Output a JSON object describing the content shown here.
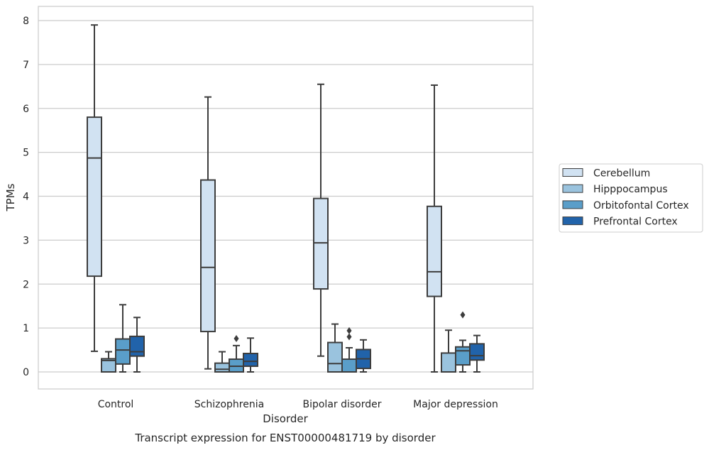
{
  "chart_data": {
    "type": "box",
    "xlabel": "Disorder",
    "ylabel": "TPMs",
    "caption": "Transcript expression for ENST00000481719 by disorder",
    "ylim": [
      -0.4,
      8.3
    ],
    "yticks": [
      0,
      1,
      2,
      3,
      4,
      5,
      6,
      7,
      8
    ],
    "grid": "horizontal",
    "legend_placement": "right",
    "categories": [
      "Control",
      "Schizophrenia",
      "Bipolar disorder",
      "Major depression"
    ],
    "series": [
      {
        "name": "Cerebellum",
        "color": "#d1e2f2",
        "boxes": [
          {
            "whisker_low": 0.47,
            "q1": 2.18,
            "median": 4.87,
            "q3": 5.8,
            "whisker_high": 7.9,
            "outliers": []
          },
          {
            "whisker_low": 0.07,
            "q1": 0.92,
            "median": 2.38,
            "q3": 4.37,
            "whisker_high": 6.26,
            "outliers": []
          },
          {
            "whisker_low": 0.36,
            "q1": 1.89,
            "median": 2.94,
            "q3": 3.95,
            "whisker_high": 6.55,
            "outliers": []
          },
          {
            "whisker_low": 0.0,
            "q1": 1.72,
            "median": 2.28,
            "q3": 3.77,
            "whisker_high": 6.53,
            "outliers": []
          }
        ]
      },
      {
        "name": "Hipppocampus",
        "color": "#9ac3de",
        "boxes": [
          {
            "whisker_low": 0.0,
            "q1": 0.0,
            "median": 0.26,
            "q3": 0.3,
            "whisker_high": 0.46,
            "outliers": []
          },
          {
            "whisker_low": 0.0,
            "q1": 0.0,
            "median": 0.06,
            "q3": 0.2,
            "whisker_high": 0.46,
            "outliers": []
          },
          {
            "whisker_low": 0.0,
            "q1": 0.0,
            "median": 0.19,
            "q3": 0.67,
            "whisker_high": 1.09,
            "outliers": []
          },
          {
            "whisker_low": 0.0,
            "q1": 0.0,
            "median": 0.0,
            "q3": 0.43,
            "whisker_high": 0.95,
            "outliers": []
          }
        ]
      },
      {
        "name": "Orbitofontal Cortex",
        "color": "#5a9ec9",
        "boxes": [
          {
            "whisker_low": 0.0,
            "q1": 0.18,
            "median": 0.5,
            "q3": 0.75,
            "whisker_high": 1.53,
            "outliers": []
          },
          {
            "whisker_low": 0.0,
            "q1": 0.0,
            "median": 0.13,
            "q3": 0.29,
            "whisker_high": 0.6,
            "outliers": [
              0.76
            ]
          },
          {
            "whisker_low": 0.0,
            "q1": 0.0,
            "median": 0.0,
            "q3": 0.29,
            "whisker_high": 0.55,
            "outliers": [
              0.8,
              0.94
            ]
          },
          {
            "whisker_low": 0.0,
            "q1": 0.16,
            "median": 0.48,
            "q3": 0.57,
            "whisker_high": 0.72,
            "outliers": [
              1.3
            ]
          }
        ]
      },
      {
        "name": "Prefrontal Cortex",
        "color": "#2163aa",
        "boxes": [
          {
            "whisker_low": 0.0,
            "q1": 0.36,
            "median": 0.46,
            "q3": 0.81,
            "whisker_high": 1.24,
            "outliers": []
          },
          {
            "whisker_low": 0.0,
            "q1": 0.13,
            "median": 0.24,
            "q3": 0.42,
            "whisker_high": 0.77,
            "outliers": []
          },
          {
            "whisker_low": 0.0,
            "q1": 0.08,
            "median": 0.3,
            "q3": 0.51,
            "whisker_high": 0.73,
            "outliers": []
          },
          {
            "whisker_low": 0.0,
            "q1": 0.27,
            "median": 0.37,
            "q3": 0.64,
            "whisker_high": 0.83,
            "outliers": []
          }
        ]
      }
    ]
  }
}
